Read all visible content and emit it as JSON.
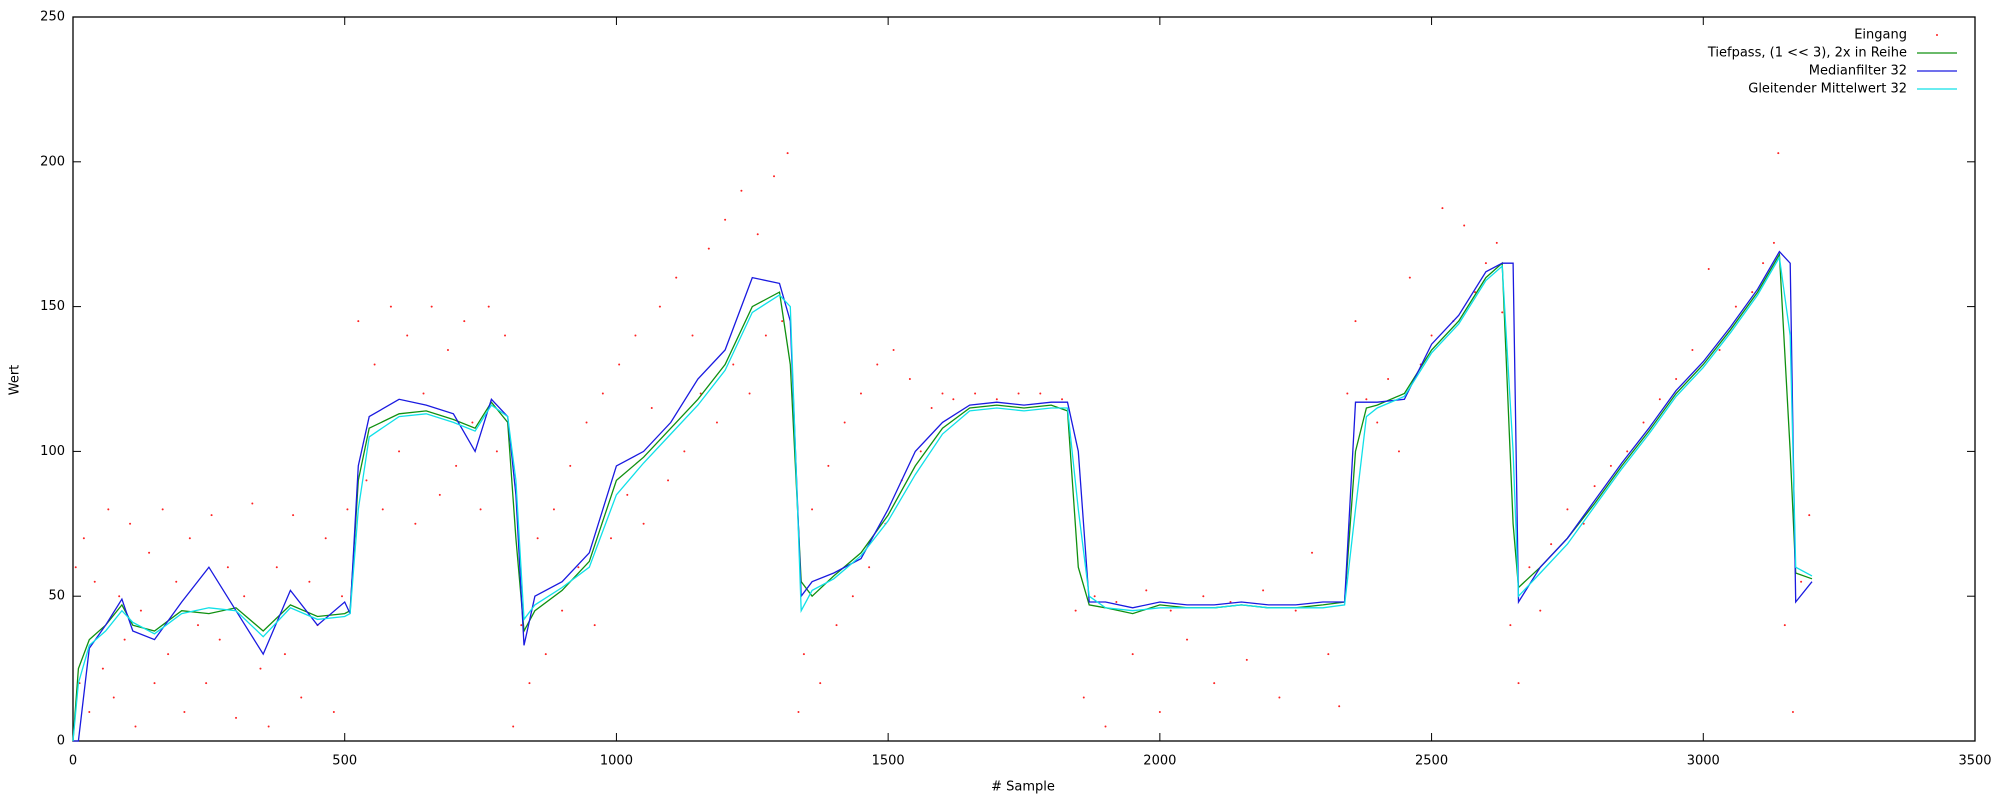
{
  "chart_data": {
    "type": "line",
    "xlabel": "# Sample",
    "ylabel": "Wert",
    "xlim": [
      0,
      3500
    ],
    "xticks": [
      0,
      500,
      1000,
      1500,
      2000,
      2500,
      3000,
      3500
    ],
    "ylim": [
      0,
      250
    ],
    "yticks": [
      0,
      50,
      100,
      150,
      200,
      250
    ],
    "legend": "top right",
    "series": [
      {
        "name": "Eingang",
        "color": "#ff2020",
        "style": "points",
        "x": [
          5,
          12,
          20,
          30,
          40,
          55,
          65,
          75,
          85,
          95,
          105,
          115,
          125,
          140,
          150,
          165,
          175,
          190,
          205,
          215,
          230,
          245,
          255,
          270,
          285,
          300,
          315,
          330,
          345,
          360,
          375,
          390,
          405,
          420,
          435,
          450,
          465,
          480,
          495,
          505,
          525,
          540,
          555,
          570,
          585,
          600,
          615,
          630,
          645,
          660,
          675,
          690,
          705,
          720,
          735,
          750,
          765,
          780,
          795,
          810,
          825,
          840,
          855,
          870,
          885,
          900,
          915,
          930,
          945,
          960,
          975,
          990,
          1005,
          1020,
          1035,
          1050,
          1065,
          1080,
          1095,
          1110,
          1125,
          1140,
          1155,
          1170,
          1185,
          1200,
          1215,
          1230,
          1245,
          1260,
          1275,
          1290,
          1305,
          1315,
          1335,
          1345,
          1360,
          1375,
          1390,
          1405,
          1420,
          1435,
          1450,
          1465,
          1480,
          1495,
          1510,
          1525,
          1540,
          1560,
          1580,
          1600,
          1620,
          1660,
          1700,
          1740,
          1780,
          1820,
          1845,
          1860,
          1880,
          1900,
          1920,
          1950,
          1975,
          2000,
          2020,
          2050,
          2080,
          2100,
          2130,
          2160,
          2190,
          2220,
          2250,
          2280,
          2310,
          2330,
          2345,
          2360,
          2380,
          2400,
          2420,
          2440,
          2460,
          2480,
          2500,
          2520,
          2540,
          2560,
          2580,
          2600,
          2620,
          2630,
          2645,
          2660,
          2680,
          2700,
          2720,
          2750,
          2780,
          2800,
          2830,
          2860,
          2890,
          2920,
          2950,
          2980,
          3010,
          3030,
          3060,
          3090,
          3110,
          3130,
          3138,
          3150,
          3165,
          3180,
          3195
        ],
        "values": [
          60,
          20,
          70,
          10,
          55,
          25,
          80,
          15,
          50,
          35,
          75,
          5,
          45,
          65,
          20,
          80,
          30,
          55,
          10,
          70,
          40,
          20,
          78,
          35,
          60,
          8,
          50,
          82,
          25,
          5,
          60,
          30,
          78,
          15,
          55,
          40,
          70,
          10,
          50,
          80,
          145,
          90,
          130,
          80,
          150,
          100,
          140,
          75,
          120,
          150,
          85,
          135,
          95,
          145,
          110,
          80,
          150,
          100,
          140,
          5,
          40,
          20,
          70,
          30,
          80,
          45,
          95,
          60,
          110,
          40,
          120,
          70,
          130,
          85,
          140,
          75,
          115,
          150,
          90,
          160,
          100,
          140,
          120,
          170,
          110,
          180,
          130,
          190,
          120,
          175,
          140,
          195,
          145,
          203,
          10,
          30,
          80,
          20,
          95,
          40,
          110,
          50,
          120,
          60,
          130,
          75,
          135,
          90,
          125,
          100,
          115,
          120,
          118,
          120,
          118,
          120,
          120,
          118,
          45,
          15,
          50,
          5,
          48,
          30,
          52,
          10,
          45,
          35,
          50,
          20,
          48,
          28,
          52,
          15,
          45,
          65,
          30,
          12,
          120,
          145,
          118,
          110,
          125,
          100,
          160,
          130,
          140,
          184,
          145,
          178,
          155,
          165,
          172,
          148,
          40,
          20,
          60,
          45,
          68,
          80,
          75,
          88,
          95,
          100,
          110,
          118,
          125,
          135,
          163,
          135,
          150,
          155,
          165,
          172,
          203,
          40,
          10,
          55,
          78
        ]
      },
      {
        "name": "Tiefpass, (1 << 3), 2x in Reihe",
        "color": "#109010",
        "x": [
          0,
          10,
          30,
          60,
          90,
          110,
          150,
          200,
          250,
          300,
          350,
          400,
          450,
          500,
          510,
          525,
          545,
          600,
          650,
          700,
          740,
          770,
          800,
          815,
          830,
          850,
          900,
          950,
          1000,
          1050,
          1100,
          1150,
          1200,
          1250,
          1300,
          1320,
          1340,
          1360,
          1400,
          1450,
          1500,
          1550,
          1600,
          1650,
          1700,
          1750,
          1800,
          1830,
          1850,
          1870,
          1900,
          1950,
          2000,
          2050,
          2100,
          2150,
          2200,
          2250,
          2300,
          2340,
          2360,
          2380,
          2400,
          2450,
          2500,
          2550,
          2600,
          2630,
          2650,
          2660,
          2700,
          2750,
          2800,
          2850,
          2900,
          2950,
          3000,
          3050,
          3100,
          3140,
          3160,
          3170,
          3200
        ],
        "values": [
          0,
          25,
          35,
          40,
          47,
          40,
          38,
          45,
          44,
          46,
          38,
          47,
          43,
          44,
          45,
          90,
          108,
          113,
          114,
          111,
          108,
          117,
          110,
          70,
          38,
          45,
          52,
          62,
          90,
          98,
          108,
          118,
          130,
          150,
          155,
          130,
          55,
          50,
          57,
          65,
          78,
          95,
          108,
          115,
          116,
          115,
          116,
          114,
          60,
          47,
          46,
          44,
          47,
          46,
          46,
          47,
          46,
          46,
          47,
          48,
          100,
          115,
          116,
          120,
          135,
          145,
          160,
          165,
          75,
          53,
          60,
          70,
          82,
          95,
          107,
          120,
          130,
          142,
          155,
          168,
          100,
          58,
          56
        ]
      },
      {
        "name": "Medianfilter 32",
        "color": "#1a1ae0",
        "x": [
          0,
          10,
          30,
          60,
          90,
          110,
          150,
          200,
          250,
          300,
          350,
          400,
          450,
          500,
          510,
          525,
          545,
          600,
          650,
          700,
          740,
          770,
          800,
          815,
          830,
          850,
          900,
          950,
          1000,
          1050,
          1100,
          1150,
          1200,
          1250,
          1300,
          1320,
          1340,
          1360,
          1400,
          1450,
          1500,
          1550,
          1600,
          1650,
          1700,
          1750,
          1800,
          1830,
          1850,
          1870,
          1900,
          1950,
          2000,
          2050,
          2100,
          2150,
          2200,
          2250,
          2300,
          2340,
          2360,
          2380,
          2400,
          2450,
          2500,
          2550,
          2600,
          2630,
          2650,
          2660,
          2700,
          2750,
          2800,
          2850,
          2900,
          2950,
          3000,
          3050,
          3100,
          3140,
          3160,
          3170,
          3200
        ],
        "values": [
          0,
          0,
          32,
          40,
          49,
          38,
          35,
          48,
          60,
          45,
          30,
          52,
          40,
          48,
          44,
          95,
          112,
          118,
          116,
          113,
          100,
          118,
          112,
          85,
          33,
          50,
          55,
          65,
          95,
          100,
          110,
          125,
          135,
          160,
          158,
          145,
          50,
          55,
          58,
          63,
          80,
          100,
          110,
          116,
          117,
          116,
          117,
          117,
          100,
          48,
          48,
          46,
          48,
          47,
          47,
          48,
          47,
          47,
          48,
          48,
          117,
          117,
          117,
          118,
          137,
          147,
          162,
          165,
          165,
          48,
          60,
          70,
          83,
          96,
          108,
          121,
          131,
          143,
          156,
          169,
          165,
          48,
          55
        ]
      },
      {
        "name": "Gleitender Mittelwert 32",
        "color": "#10e0e8",
        "x": [
          0,
          10,
          30,
          60,
          90,
          110,
          150,
          200,
          250,
          300,
          350,
          400,
          450,
          500,
          510,
          525,
          545,
          600,
          650,
          700,
          740,
          770,
          800,
          815,
          830,
          850,
          900,
          950,
          1000,
          1050,
          1100,
          1150,
          1200,
          1250,
          1300,
          1320,
          1340,
          1360,
          1400,
          1450,
          1500,
          1550,
          1600,
          1650,
          1700,
          1750,
          1800,
          1830,
          1850,
          1870,
          1900,
          1950,
          2000,
          2050,
          2100,
          2150,
          2200,
          2250,
          2300,
          2340,
          2360,
          2380,
          2400,
          2450,
          2500,
          2550,
          2600,
          2630,
          2650,
          2660,
          2700,
          2750,
          2800,
          2850,
          2900,
          2950,
          3000,
          3050,
          3100,
          3140,
          3160,
          3170,
          3200
        ],
        "values": [
          0,
          20,
          33,
          38,
          45,
          41,
          37,
          44,
          46,
          45,
          36,
          46,
          42,
          43,
          44,
          80,
          105,
          112,
          113,
          110,
          107,
          116,
          112,
          90,
          42,
          47,
          53,
          60,
          85,
          96,
          106,
          116,
          128,
          148,
          154,
          150,
          45,
          52,
          56,
          64,
          76,
          92,
          106,
          114,
          115,
          114,
          115,
          115,
          80,
          50,
          46,
          45,
          46,
          46,
          46,
          47,
          46,
          46,
          46,
          47,
          80,
          112,
          115,
          119,
          134,
          144,
          159,
          164,
          100,
          50,
          58,
          68,
          81,
          94,
          106,
          119,
          129,
          141,
          154,
          167,
          140,
          60,
          57
        ]
      }
    ]
  }
}
